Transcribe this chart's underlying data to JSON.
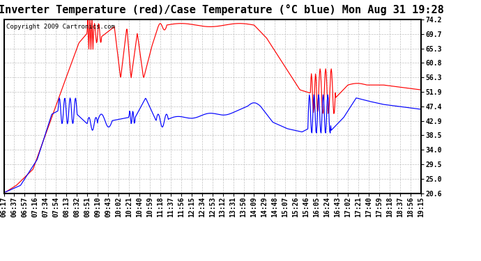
{
  "title": "Inverter Temperature (red)/Case Temperature (°C blue) Mon Aug 31 19:28",
  "copyright": "Copyright 2009 Cartronics.com",
  "yticks": [
    20.6,
    25.0,
    29.5,
    34.0,
    38.5,
    42.9,
    47.4,
    51.9,
    56.3,
    60.8,
    65.3,
    69.7,
    74.2
  ],
  "ymin": 20.6,
  "ymax": 74.2,
  "bg_color": "#ffffff",
  "plot_bg_color": "#ffffff",
  "grid_color": "#c0c0c0",
  "red_color": "#ff0000",
  "blue_color": "#0000ff",
  "title_fontsize": 11,
  "copyright_fontsize": 6.5,
  "tick_fontsize": 7,
  "xtick_labels": [
    "06:17",
    "06:37",
    "06:57",
    "07:16",
    "07:34",
    "07:54",
    "08:13",
    "08:32",
    "08:51",
    "09:10",
    "09:43",
    "10:02",
    "10:21",
    "10:40",
    "10:59",
    "11:18",
    "11:37",
    "11:56",
    "12:15",
    "12:34",
    "12:53",
    "13:12",
    "13:31",
    "13:50",
    "14:09",
    "14:29",
    "14:48",
    "15:07",
    "15:26",
    "15:46",
    "16:05",
    "16:24",
    "16:43",
    "17:02",
    "17:21",
    "17:40",
    "17:59",
    "18:18",
    "18:37",
    "18:56",
    "19:15"
  ]
}
